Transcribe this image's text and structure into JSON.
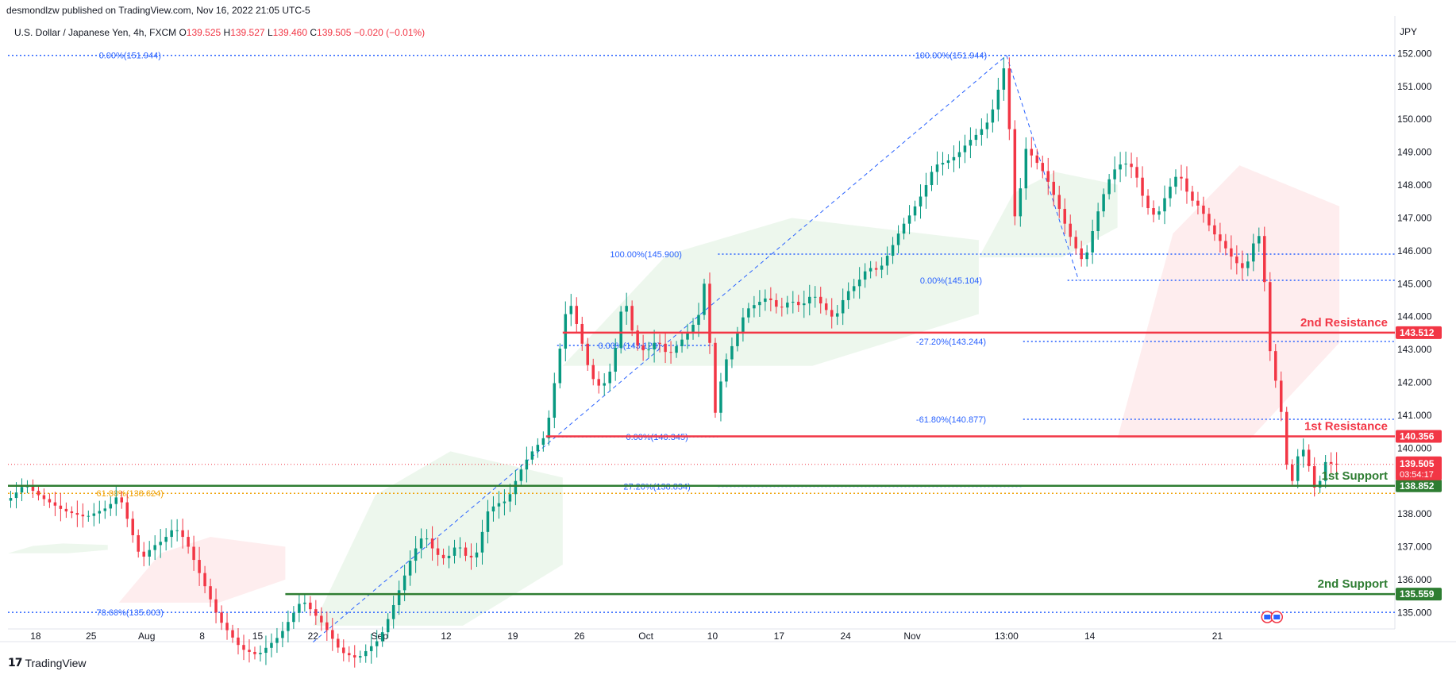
{
  "header": {
    "publish_line": "desmondlzw published on TradingView.com, Nov 16, 2022 21:05 UTC-5",
    "symbol": "U.S. Dollar / Japanese Yen, 4h, FXCM",
    "o_label": "O",
    "o_value": "139.525",
    "h_label": "H",
    "h_value": "139.527",
    "l_label": "L",
    "l_value": "139.460",
    "c_label": "C",
    "c_value": "139.505",
    "change": "−0.020 (−0.01%)",
    "currency": "JPY"
  },
  "footer": {
    "brand": "TradingView"
  },
  "chart_data": {
    "type": "candlestick",
    "instrument": "USDJPY",
    "timeframe": "4h",
    "y_range": [
      134.5,
      152.3
    ],
    "y_ticks": [
      "135.000",
      "136.000",
      "137.000",
      "138.000",
      "139.000",
      "140.000",
      "141.000",
      "142.000",
      "143.000",
      "144.000",
      "145.000",
      "146.000",
      "147.000",
      "148.000",
      "149.000",
      "150.000",
      "151.000",
      "152.000"
    ],
    "x_ticks": [
      "18",
      "25",
      "Aug",
      "8",
      "15",
      "22",
      "Sep",
      "12",
      "19",
      "26",
      "Oct",
      "10",
      "17",
      "24",
      "Nov",
      "13:00",
      "14",
      "21"
    ],
    "close_path": [
      [
        0,
        138.4
      ],
      [
        3,
        138.9
      ],
      [
        6,
        138.5
      ],
      [
        10,
        138.1
      ],
      [
        14,
        137.9
      ],
      [
        18,
        138.2
      ],
      [
        20,
        138.6
      ],
      [
        22,
        137.6
      ],
      [
        24,
        136.6
      ],
      [
        26,
        137.0
      ],
      [
        28,
        137.2
      ],
      [
        30,
        137.6
      ],
      [
        32,
        137.2
      ],
      [
        34,
        136.4
      ],
      [
        36,
        135.6
      ],
      [
        38,
        134.8
      ],
      [
        42,
        133.9
      ],
      [
        45,
        133.7
      ],
      [
        49,
        134.3
      ],
      [
        53,
        135.4
      ],
      [
        55,
        135.0
      ],
      [
        57,
        134.6
      ],
      [
        60,
        133.8
      ],
      [
        63,
        133.6
      ],
      [
        67,
        134.2
      ],
      [
        69,
        135.0
      ],
      [
        71,
        135.9
      ],
      [
        73,
        136.8
      ],
      [
        75,
        137.4
      ],
      [
        77,
        136.8
      ],
      [
        79,
        136.6
      ],
      [
        81,
        137.1
      ],
      [
        83,
        136.6
      ],
      [
        85,
        136.9
      ],
      [
        86,
        138.0
      ],
      [
        88,
        138.3
      ],
      [
        90,
        138.4
      ],
      [
        92,
        139.2
      ],
      [
        94,
        139.8
      ],
      [
        96,
        140.2
      ],
      [
        97,
        140.4
      ],
      [
        99,
        142.5
      ],
      [
        101,
        144.6
      ],
      [
        103,
        143.5
      ],
      [
        105,
        142.2
      ],
      [
        107,
        141.8
      ],
      [
        109,
        142.5
      ],
      [
        111,
        144.7
      ],
      [
        113,
        143.2
      ],
      [
        115,
        142.9
      ],
      [
        117,
        143.3
      ],
      [
        119,
        142.8
      ],
      [
        121,
        143.2
      ],
      [
        123,
        143.6
      ],
      [
        125,
        144.2
      ],
      [
        126,
        145.8
      ],
      [
        127,
        140.6
      ],
      [
        129,
        142.5
      ],
      [
        131,
        143.3
      ],
      [
        133,
        144.2
      ],
      [
        135,
        144.4
      ],
      [
        137,
        144.6
      ],
      [
        139,
        144.2
      ],
      [
        141,
        144.5
      ],
      [
        143,
        144.3
      ],
      [
        145,
        144.7
      ],
      [
        147,
        144.3
      ],
      [
        149,
        143.9
      ],
      [
        151,
        144.7
      ],
      [
        153,
        145.0
      ],
      [
        155,
        145.5
      ],
      [
        157,
        145.4
      ],
      [
        159,
        146.0
      ],
      [
        161,
        146.7
      ],
      [
        163,
        147.2
      ],
      [
        165,
        147.8
      ],
      [
        167,
        148.6
      ],
      [
        169,
        148.7
      ],
      [
        171,
        148.9
      ],
      [
        173,
        149.3
      ],
      [
        175,
        149.6
      ],
      [
        177,
        150.0
      ],
      [
        179,
        151.2
      ],
      [
        180,
        151.9
      ],
      [
        181,
        147.5
      ],
      [
        182,
        146.6
      ],
      [
        183,
        149.2
      ],
      [
        185,
        148.8
      ],
      [
        187,
        148.3
      ],
      [
        189,
        147.5
      ],
      [
        191,
        146.6
      ],
      [
        193,
        145.9
      ],
      [
        194,
        145.6
      ],
      [
        195,
        146.3
      ],
      [
        197,
        147.5
      ],
      [
        199,
        148.4
      ],
      [
        201,
        148.7
      ],
      [
        203,
        148.5
      ],
      [
        205,
        147.4
      ],
      [
        207,
        147.0
      ],
      [
        209,
        147.8
      ],
      [
        211,
        148.4
      ],
      [
        213,
        147.6
      ],
      [
        215,
        147.3
      ],
      [
        217,
        146.6
      ],
      [
        219,
        146.2
      ],
      [
        221,
        145.7
      ],
      [
        223,
        145.4
      ],
      [
        225,
        146.5
      ],
      [
        226,
        146.4
      ],
      [
        227,
        143.7
      ],
      [
        228,
        142.2
      ],
      [
        229,
        141.9
      ],
      [
        230,
        140.3
      ],
      [
        231,
        138.7
      ],
      [
        232,
        139.3
      ],
      [
        233,
        140.2
      ],
      [
        235,
        139.2
      ],
      [
        236,
        138.4
      ],
      [
        237,
        139.6
      ],
      [
        239,
        139.5
      ],
      [
        240,
        139.5
      ]
    ],
    "ichimoku_cloud": [
      {
        "from": 0,
        "to": 18,
        "top": 137.1,
        "bottom": 136.8,
        "color": "bullish"
      },
      {
        "from": 20,
        "to": 50,
        "top": 137.3,
        "bottom": 135.3,
        "color": "bearish"
      },
      {
        "from": 55,
        "to": 100,
        "top": 139.9,
        "bottom": 134.6,
        "color": "bullish"
      },
      {
        "from": 100,
        "to": 175,
        "top": 147.0,
        "bottom": 142.5,
        "color": "bullish"
      },
      {
        "from": 175,
        "to": 200,
        "top": 148.4,
        "bottom": 145.8,
        "color": "bullish"
      },
      {
        "from": 200,
        "to": 240,
        "top": 148.6,
        "bottom": 140.3,
        "color": "bearish"
      }
    ],
    "horizontal_levels": [
      {
        "label": "2nd Resistance",
        "value": "143.512",
        "price": 143.512,
        "color": "#f23645",
        "from": 100
      },
      {
        "label": "1st Resistance",
        "value": "140.356",
        "price": 140.356,
        "color": "#f23645",
        "from": 97
      },
      {
        "label": "1st Support",
        "value": "138.852",
        "price": 138.852,
        "color": "#2e7d32",
        "from": 0
      },
      {
        "label": "2nd Support",
        "value": "135.559",
        "price": 135.559,
        "color": "#2e7d32",
        "from": 50
      }
    ],
    "last_price": {
      "value": "139.505",
      "countdown": "03:54:17",
      "price": 139.505
    },
    "fib_levels": [
      {
        "text": "0.00%(151.944)",
        "price": 151.944,
        "color": "#2962ff",
        "from": 0,
        "to": 250,
        "text_at": 22
      },
      {
        "text": "100.00%(151.944)",
        "price": 151.944,
        "color": "#2962ff",
        "from": 0,
        "to": 250,
        "text_at": 170
      },
      {
        "text": "100.00%(145.900)",
        "price": 145.9,
        "color": "#2962ff",
        "from": 128,
        "to": 250,
        "text_at": 115
      },
      {
        "text": "0.00%(145.104)",
        "price": 145.104,
        "color": "#2962ff",
        "from": 191,
        "to": 250,
        "text_at": 170
      },
      {
        "text": "0.00%(143.123)",
        "price": 143.123,
        "color": "#2962ff",
        "from": 99,
        "to": 127,
        "text_at": 112
      },
      {
        "text": "-27.20%(143.244)",
        "price": 143.244,
        "color": "#2962ff",
        "from": 183,
        "to": 250,
        "text_at": 170
      },
      {
        "text": "-61.80%(140.877)",
        "price": 140.877,
        "color": "#2962ff",
        "from": 183,
        "to": 250,
        "text_at": 170
      },
      {
        "text": "0.00%(140.345)",
        "price": 140.345,
        "color": "#2962ff",
        "from": 97,
        "to": 128,
        "text_at": 117
      },
      {
        "text": "27.20%(138.834)",
        "price": 138.834,
        "color": "#2962ff",
        "from": 128,
        "to": 183,
        "text_at": 117
      },
      {
        "text": "61.80%(138.624)",
        "price": 138.624,
        "color": "#f0a30a",
        "from": 0,
        "to": 250,
        "text_at": 22
      },
      {
        "text": "78.60%(135.003)",
        "price": 135.003,
        "color": "#2962ff",
        "from": 0,
        "to": 250,
        "text_at": 22
      }
    ]
  }
}
